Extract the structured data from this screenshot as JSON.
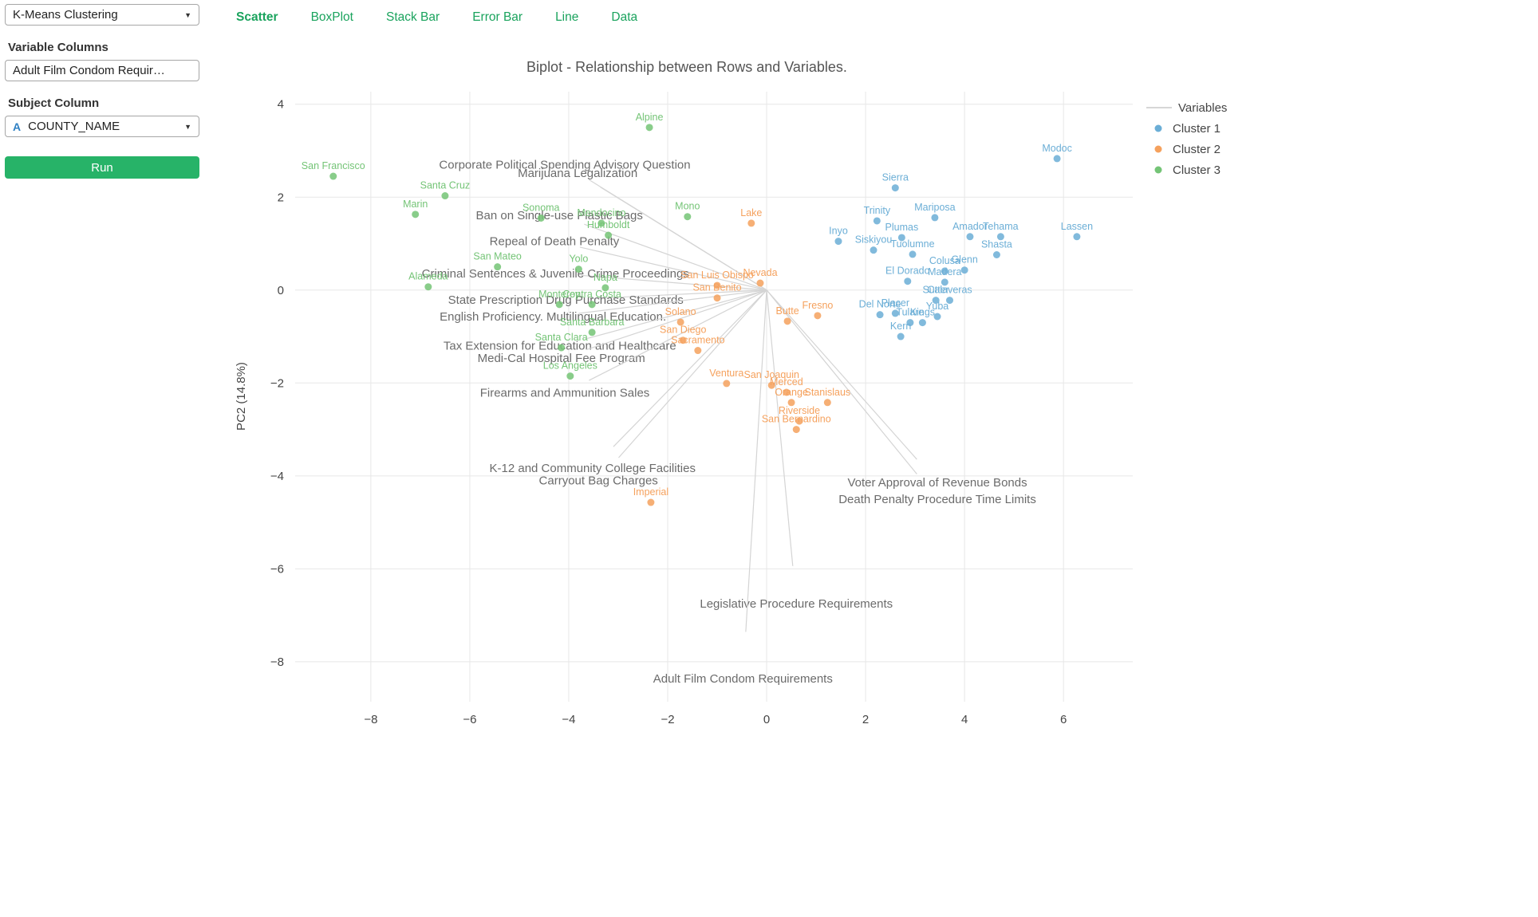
{
  "colors": {
    "tab_accent": "#1aa35d",
    "run_button": "#27b368",
    "type_icon": "#2f80c3",
    "cluster1_blue": "#6baed6",
    "cluster2_orange": "#f5a15d",
    "cluster3_green": "#74c476",
    "vector_line_gray": "#d4d4d4"
  },
  "sidebar": {
    "method_value": "K-Means Clustering",
    "variable_columns_label": "Variable Columns",
    "variable_columns_value": "Adult Film Condom Requir…",
    "subject_column_label": "Subject Column",
    "subject_type_icon": "A",
    "subject_value": "COUNTY_NAME",
    "run_label": "Run"
  },
  "tabs": [
    {
      "label": "Scatter",
      "active": true
    },
    {
      "label": "BoxPlot",
      "active": false
    },
    {
      "label": "Stack Bar",
      "active": false
    },
    {
      "label": "Error Bar",
      "active": false
    },
    {
      "label": "Line",
      "active": false
    },
    {
      "label": "Data",
      "active": false
    }
  ],
  "chart_data": {
    "type": "scatter",
    "title": "Biplot - Relationship between Rows and Variables.",
    "ylabel": "PC2 (14.8%)",
    "xlim": [
      -9.53,
      7.4
    ],
    "ylim": [
      -8.86,
      4.27
    ],
    "xticks": [
      -8,
      -6,
      -4,
      -2,
      0,
      2,
      4,
      6
    ],
    "yticks": [
      4,
      2,
      0,
      -2,
      -4,
      -6,
      -8
    ],
    "legend": {
      "line_entry": "Variables",
      "entries": [
        {
          "label": "Cluster 1",
          "color": "#6baed6"
        },
        {
          "label": "Cluster 2",
          "color": "#f5a15d"
        },
        {
          "label": "Cluster 3",
          "color": "#74c476"
        }
      ],
      "position": "right"
    },
    "series": [
      {
        "name": "Cluster 1",
        "color": "#6baed6",
        "points": [
          {
            "label": "Modoc",
            "x": 5.87,
            "y": 2.83
          },
          {
            "label": "Sierra",
            "x": 2.6,
            "y": 2.2
          },
          {
            "label": "Trinity",
            "x": 2.23,
            "y": 1.49
          },
          {
            "label": "Mariposa",
            "x": 3.4,
            "y": 1.56
          },
          {
            "label": "Plumas",
            "x": 2.73,
            "y": 1.13
          },
          {
            "label": "Amador",
            "x": 4.11,
            "y": 1.15
          },
          {
            "label": "Tehama",
            "x": 4.73,
            "y": 1.15
          },
          {
            "label": "Lassen",
            "x": 6.27,
            "y": 1.15
          },
          {
            "label": "Inyo",
            "x": 1.45,
            "y": 1.05
          },
          {
            "label": "Siskiyou",
            "x": 2.16,
            "y": 0.86
          },
          {
            "label": "Tuolumne",
            "x": 2.95,
            "y": 0.77
          },
          {
            "label": "Shasta",
            "x": 4.65,
            "y": 0.76
          },
          {
            "label": "Colusa",
            "x": 3.6,
            "y": 0.41
          },
          {
            "label": "Glenn",
            "x": 4.0,
            "y": 0.43
          },
          {
            "label": "El Dorado",
            "x": 2.85,
            "y": 0.19
          },
          {
            "label": "Madera",
            "x": 3.6,
            "y": 0.17
          },
          {
            "label": "Sutter",
            "x": 3.42,
            "y": -0.22
          },
          {
            "label": "Calaveras",
            "x": 3.7,
            "y": -0.22
          },
          {
            "label": "Del Norte",
            "x": 2.29,
            "y": -0.53
          },
          {
            "label": "Placer",
            "x": 2.6,
            "y": -0.5
          },
          {
            "label": "Yuba",
            "x": 3.45,
            "y": -0.57
          },
          {
            "label": "Tulare",
            "x": 2.9,
            "y": -0.7
          },
          {
            "label": "Kings",
            "x": 3.15,
            "y": -0.7
          },
          {
            "label": "Kern",
            "x": 2.71,
            "y": -1.0
          }
        ]
      },
      {
        "name": "Cluster 2",
        "color": "#f5a15d",
        "points": [
          {
            "label": "Lake",
            "x": -0.31,
            "y": 1.44
          },
          {
            "label": "Nevada",
            "x": -0.13,
            "y": 0.15
          },
          {
            "label": "San Luis Obispo",
            "x": -1.0,
            "y": 0.1
          },
          {
            "label": "San Benito",
            "x": -1.0,
            "y": -0.17
          },
          {
            "label": "Solano",
            "x": -1.74,
            "y": -0.69
          },
          {
            "label": "San Diego",
            "x": -1.69,
            "y": -1.08
          },
          {
            "label": "Sacramento",
            "x": -1.39,
            "y": -1.3
          },
          {
            "label": "Butte",
            "x": 0.42,
            "y": -0.67
          },
          {
            "label": "Fresno",
            "x": 1.03,
            "y": -0.55
          },
          {
            "label": "Ventura",
            "x": -0.81,
            "y": -2.01
          },
          {
            "label": "San Joaquin",
            "x": 0.1,
            "y": -2.05
          },
          {
            "label": "Merced",
            "x": 0.4,
            "y": -2.2
          },
          {
            "label": "Orange",
            "x": 0.5,
            "y": -2.42
          },
          {
            "label": "Stanislaus",
            "x": 1.23,
            "y": -2.42
          },
          {
            "label": "Riverside",
            "x": 0.66,
            "y": -2.82
          },
          {
            "label": "San Bernardino",
            "x": 0.6,
            "y": -3.0
          },
          {
            "label": "Imperial",
            "x": -2.34,
            "y": -4.57
          }
        ]
      },
      {
        "name": "Cluster 3",
        "color": "#74c476",
        "points": [
          {
            "label": "Alpine",
            "x": -2.37,
            "y": 3.5
          },
          {
            "label": "San Francisco",
            "x": -8.76,
            "y": 2.45
          },
          {
            "label": "Santa Cruz",
            "x": -6.5,
            "y": 2.03
          },
          {
            "label": "Marin",
            "x": -7.1,
            "y": 1.63
          },
          {
            "label": "Sonoma",
            "x": -4.56,
            "y": 1.55
          },
          {
            "label": "Mendocino",
            "x": -3.34,
            "y": 1.44
          },
          {
            "label": "Humboldt",
            "x": -3.2,
            "y": 1.18
          },
          {
            "label": "Mono",
            "x": -1.6,
            "y": 1.58
          },
          {
            "label": "San Mateo",
            "x": -5.44,
            "y": 0.5
          },
          {
            "label": "Yolo",
            "x": -3.8,
            "y": 0.45
          },
          {
            "label": "Alameda",
            "x": -6.84,
            "y": 0.07
          },
          {
            "label": "Napa",
            "x": -3.26,
            "y": 0.05
          },
          {
            "label": "Monterey",
            "x": -4.19,
            "y": -0.31
          },
          {
            "label": "Contra Costa",
            "x": -3.53,
            "y": -0.31
          },
          {
            "label": "Santa Barbara",
            "x": -3.53,
            "y": -0.91
          },
          {
            "label": "Santa Clara",
            "x": -4.15,
            "y": -1.24
          },
          {
            "label": "Los Angeles",
            "x": -3.97,
            "y": -1.85
          }
        ]
      }
    ],
    "vectors": [
      {
        "label": "Corporate Political Spending Advisory Question",
        "x": -4.08,
        "y": 2.7
      },
      {
        "label": "Marijuana Legalization",
        "x": -3.82,
        "y": 2.52
      },
      {
        "label": "Ban on Single-use Plastic Bags",
        "x": -4.19,
        "y": 1.61
      },
      {
        "label": "Repeal of Death Penalty",
        "x": -4.29,
        "y": 1.05
      },
      {
        "label": "Criminal Sentences & Juvenile Crime Proceedings",
        "x": -4.27,
        "y": 0.36
      },
      {
        "label": "State Prescription Drug Purchase Standards",
        "x": -4.06,
        "y": -0.21
      },
      {
        "label": "English Proficiency. Multilingual Education.",
        "x": -4.32,
        "y": -0.57
      },
      {
        "label": "Tax Extension for Education and Healthcare",
        "x": -4.18,
        "y": -1.2
      },
      {
        "label": "Medi-Cal Hospital Fee Program",
        "x": -4.15,
        "y": -1.46
      },
      {
        "label": "Firearms and Ammunition Sales",
        "x": -4.08,
        "y": -2.21
      },
      {
        "label": "K-12 and Community College Facilities",
        "x": -3.52,
        "y": -3.83
      },
      {
        "label": "Carryout Bag Charges",
        "x": -3.4,
        "y": -4.1
      },
      {
        "label": "Voter Approval of Revenue Bonds",
        "x": 3.45,
        "y": -4.14
      },
      {
        "label": "Death Penalty Procedure Time Limits",
        "x": 3.45,
        "y": -4.5
      },
      {
        "label": "Legislative Procedure Requirements",
        "x": 0.6,
        "y": -6.75
      },
      {
        "label": "Adult Film Condom Requirements",
        "x": -0.48,
        "y": -8.36
      }
    ]
  }
}
